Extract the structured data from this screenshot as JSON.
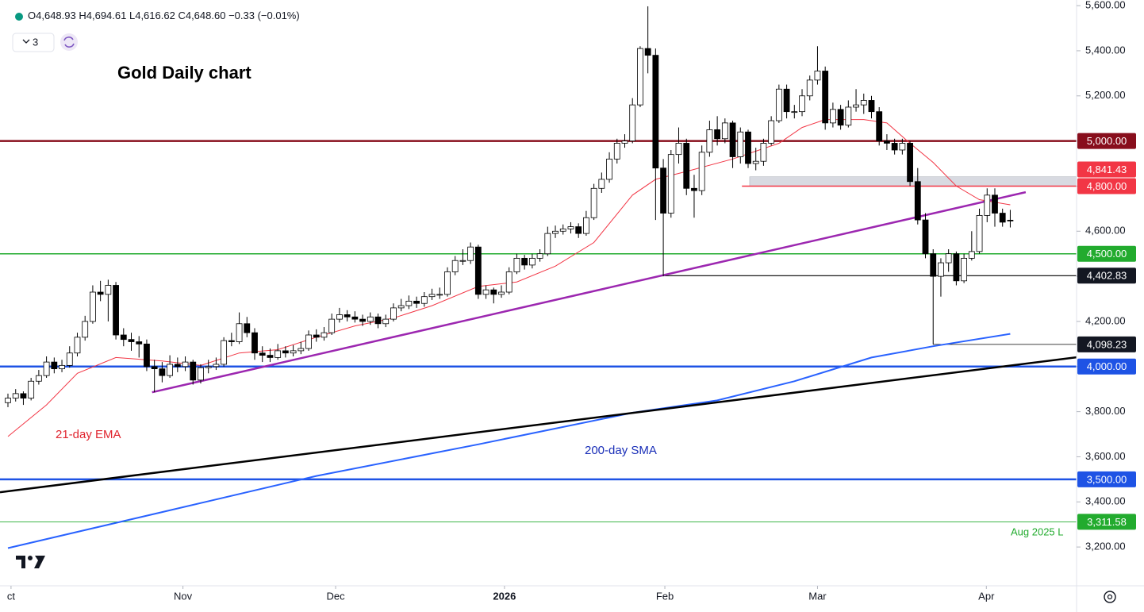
{
  "header": {
    "items": [
      {
        "key": "O",
        "value": "4,648.93"
      },
      {
        "key": "H",
        "value": "4,694.61"
      },
      {
        "key": "L",
        "value": "4,616.62"
      },
      {
        "key": "C",
        "value": "4,648.60"
      }
    ],
    "change": "−0.33 (−0.01%)",
    "interval": "3"
  },
  "chart_data": {
    "type": "candlestick",
    "title": "Gold Daily chart",
    "up_color": "#ffffff",
    "down_color": "#000000",
    "outline_color": "#000000",
    "xlim": [
      -1.03,
      138.6
    ],
    "ylim": [
      3028,
      5625
    ],
    "xticks": [
      {
        "value": 0.4,
        "label": "ct"
      },
      {
        "value": 22.7,
        "label": "Nov"
      },
      {
        "value": 42.5,
        "label": "Dec"
      },
      {
        "value": 64.4,
        "label": "2026"
      },
      {
        "value": 85.2,
        "label": "Feb"
      },
      {
        "value": 105,
        "label": "Mar"
      },
      {
        "value": 126.9,
        "label": "Apr"
      }
    ],
    "yticks": [
      {
        "value": 3200,
        "label": "3,200.00"
      },
      {
        "value": 3400,
        "label": "3,400.00"
      },
      {
        "value": 3600,
        "label": "3,600.00"
      },
      {
        "value": 3800,
        "label": "3,800.00"
      },
      {
        "value": 4000,
        "label": "4,000.00"
      },
      {
        "value": 4200,
        "label": "4,200.00"
      },
      {
        "value": 4400,
        "label": "4,400.00"
      },
      {
        "value": 4600,
        "label": "4,600.00"
      },
      {
        "value": 4800,
        "label": "4,800.00"
      },
      {
        "value": 5000,
        "label": "5,000.00"
      },
      {
        "value": 5200,
        "label": "5,200.00"
      },
      {
        "value": 5400,
        "label": "5,400.00"
      },
      {
        "value": 5600,
        "label": "5,600.00"
      }
    ],
    "grid": false,
    "ohlc": [
      [
        3840,
        3880,
        3820,
        3860
      ],
      [
        3860,
        3900,
        3845,
        3880
      ],
      [
        3880,
        3890,
        3830,
        3860
      ],
      [
        3860,
        3950,
        3850,
        3935
      ],
      [
        3935,
        3985,
        3920,
        3960
      ],
      [
        3960,
        4045,
        3950,
        4020
      ],
      [
        4020,
        4040,
        3970,
        3990
      ],
      [
        3990,
        4030,
        3975,
        4005
      ],
      [
        4005,
        4090,
        3995,
        4060
      ],
      [
        4060,
        4150,
        4045,
        4130
      ],
      [
        4130,
        4225,
        4115,
        4200
      ],
      [
        4200,
        4360,
        4190,
        4330
      ],
      [
        4330,
        4380,
        4290,
        4320
      ],
      [
        4320,
        4385,
        4200,
        4360
      ],
      [
        4360,
        4375,
        4120,
        4140
      ],
      [
        4140,
        4170,
        4090,
        4120
      ],
      [
        4120,
        4150,
        4070,
        4110
      ],
      [
        4110,
        4135,
        4040,
        4100
      ],
      [
        4100,
        4120,
        3980,
        4000
      ],
      [
        4000,
        4030,
        3886,
        3990
      ],
      [
        3990,
        4020,
        3930,
        3960
      ],
      [
        3960,
        4050,
        3950,
        4010
      ],
      [
        4010,
        4040,
        3975,
        4000
      ],
      [
        4000,
        4045,
        3980,
        4020
      ],
      [
        4020,
        4030,
        3920,
        3940
      ],
      [
        3940,
        4010,
        3925,
        3995
      ],
      [
        3995,
        4030,
        3970,
        4000
      ],
      [
        4000,
        4040,
        3985,
        4010
      ],
      [
        4010,
        4130,
        4000,
        4115
      ],
      [
        4115,
        4150,
        4090,
        4110
      ],
      [
        4110,
        4240,
        4100,
        4190
      ],
      [
        4190,
        4220,
        4130,
        4150
      ],
      [
        4150,
        4170,
        4030,
        4060
      ],
      [
        4060,
        4090,
        4020,
        4050
      ],
      [
        4050,
        4080,
        4020,
        4040
      ],
      [
        4040,
        4100,
        4030,
        4070
      ],
      [
        4070,
        4090,
        4040,
        4060
      ],
      [
        4060,
        4095,
        4045,
        4070
      ],
      [
        4070,
        4110,
        4055,
        4080
      ],
      [
        4080,
        4160,
        4070,
        4140
      ],
      [
        4140,
        4165,
        4110,
        4130
      ],
      [
        4130,
        4175,
        4115,
        4150
      ],
      [
        4150,
        4235,
        4140,
        4210
      ],
      [
        4210,
        4260,
        4195,
        4230
      ],
      [
        4230,
        4250,
        4200,
        4220
      ],
      [
        4220,
        4245,
        4195,
        4210
      ],
      [
        4210,
        4230,
        4180,
        4200
      ],
      [
        4200,
        4240,
        4185,
        4220
      ],
      [
        4220,
        4235,
        4170,
        4190
      ],
      [
        4190,
        4230,
        4175,
        4210
      ],
      [
        4210,
        4280,
        4200,
        4260
      ],
      [
        4260,
        4300,
        4245,
        4270
      ],
      [
        4270,
        4315,
        4255,
        4290
      ],
      [
        4290,
        4310,
        4260,
        4280
      ],
      [
        4280,
        4330,
        4265,
        4310
      ],
      [
        4310,
        4345,
        4295,
        4320
      ],
      [
        4320,
        4350,
        4300,
        4320
      ],
      [
        4320,
        4440,
        4310,
        4420
      ],
      [
        4420,
        4490,
        4405,
        4470
      ],
      [
        4470,
        4520,
        4450,
        4470
      ],
      [
        4470,
        4550,
        4455,
        4530
      ],
      [
        4530,
        4540,
        4300,
        4320
      ],
      [
        4320,
        4360,
        4300,
        4340
      ],
      [
        4340,
        4350,
        4280,
        4320
      ],
      [
        4320,
        4360,
        4305,
        4330
      ],
      [
        4330,
        4440,
        4320,
        4420
      ],
      [
        4420,
        4500,
        4410,
        4480
      ],
      [
        4480,
        4495,
        4430,
        4450
      ],
      [
        4450,
        4500,
        4435,
        4480
      ],
      [
        4480,
        4520,
        4465,
        4500
      ],
      [
        4500,
        4620,
        4490,
        4590
      ],
      [
        4590,
        4625,
        4570,
        4600
      ],
      [
        4600,
        4630,
        4585,
        4610
      ],
      [
        4610,
        4640,
        4590,
        4620
      ],
      [
        4620,
        4635,
        4570,
        4590
      ],
      [
        4590,
        4690,
        4580,
        4660
      ],
      [
        4660,
        4810,
        4650,
        4790
      ],
      [
        4790,
        4860,
        4770,
        4830
      ],
      [
        4830,
        4950,
        4815,
        4920
      ],
      [
        4920,
        5010,
        4900,
        4990
      ],
      [
        4990,
        5030,
        4970,
        5000
      ],
      [
        5000,
        5190,
        4990,
        5160
      ],
      [
        5160,
        5420,
        5150,
        5410
      ],
      [
        5410,
        5597,
        5300,
        5380
      ],
      [
        5380,
        5410,
        4650,
        4880
      ],
      [
        4880,
        4920,
        4400,
        4680
      ],
      [
        4680,
        4960,
        4660,
        4940
      ],
      [
        4940,
        5060,
        4900,
        4990
      ],
      [
        4990,
        5010,
        4760,
        4790
      ],
      [
        4790,
        4850,
        4660,
        4780
      ],
      [
        4780,
        4980,
        4760,
        4950
      ],
      [
        4950,
        5090,
        4930,
        5050
      ],
      [
        5050,
        5110,
        4980,
        5010
      ],
      [
        5010,
        5100,
        4990,
        5080
      ],
      [
        5080,
        5090,
        4880,
        4930
      ],
      [
        4930,
        5060,
        4900,
        5040
      ],
      [
        5040,
        5050,
        4880,
        4900
      ],
      [
        4900,
        4970,
        4870,
        4910
      ],
      [
        4910,
        5010,
        4890,
        4990
      ],
      [
        4990,
        5110,
        4980,
        5090
      ],
      [
        5090,
        5250,
        5080,
        5230
      ],
      [
        5230,
        5250,
        5100,
        5130
      ],
      [
        5130,
        5160,
        5100,
        5130
      ],
      [
        5130,
        5230,
        5110,
        5200
      ],
      [
        5200,
        5290,
        5180,
        5270
      ],
      [
        5270,
        5420,
        5250,
        5310
      ],
      [
        5310,
        5330,
        5050,
        5080
      ],
      [
        5080,
        5170,
        5060,
        5140
      ],
      [
        5140,
        5160,
        5050,
        5070
      ],
      [
        5070,
        5180,
        5060,
        5150
      ],
      [
        5150,
        5230,
        5130,
        5160
      ],
      [
        5160,
        5210,
        5120,
        5180
      ],
      [
        5180,
        5200,
        5100,
        5130
      ],
      [
        5130,
        5150,
        4980,
        5000
      ],
      [
        5000,
        5030,
        4960,
        4990
      ],
      [
        4990,
        5010,
        4940,
        4960
      ],
      [
        4960,
        5010,
        4940,
        4990
      ],
      [
        4990,
        5000,
        4800,
        4820
      ],
      [
        4820,
        4880,
        4630,
        4650
      ],
      [
        4650,
        4680,
        4480,
        4500
      ],
      [
        4500,
        4520,
        4098.23,
        4400
      ],
      [
        4400,
        4480,
        4310,
        4460
      ],
      [
        4460,
        4520,
        4420,
        4500
      ],
      [
        4500,
        4510,
        4360,
        4380
      ],
      [
        4380,
        4500,
        4370,
        4480
      ],
      [
        4480,
        4600,
        4470,
        4510
      ],
      [
        4510,
        4700,
        4500,
        4670
      ],
      [
        4670,
        4790,
        4640,
        4760
      ],
      [
        4760,
        4790,
        4620,
        4680
      ],
      [
        4680,
        4700,
        4620,
        4640
      ],
      [
        4648.93,
        4694.61,
        4616.62,
        4648.6
      ]
    ],
    "lines": [
      {
        "name": "21-day EMA",
        "color": "#f23645",
        "width": 1,
        "x": [
          0,
          5,
          9,
          14,
          20,
          25,
          30,
          35,
          40,
          45,
          50,
          55,
          61,
          66,
          71,
          76,
          81,
          84,
          88,
          94,
          100,
          103,
          106,
          111,
          114,
          117,
          120,
          123,
          126,
          130
        ],
        "values": [
          3690,
          3830,
          3970,
          4040,
          4025,
          4005,
          4060,
          4075,
          4130,
          4180,
          4215,
          4270,
          4355,
          4375,
          4445,
          4550,
          4760,
          4830,
          4865,
          4920,
          4990,
          5060,
          5095,
          5095,
          5080,
          4990,
          4905,
          4800,
          4740,
          4717
        ]
      },
      {
        "name": "200-day SMA",
        "color": "#2962ff",
        "width": 2,
        "x": [
          0,
          20,
          40,
          61,
          81,
          92,
          102,
          112,
          120,
          130
        ],
        "values": [
          3195,
          3355,
          3515,
          3655,
          3795,
          3850,
          3935,
          4040,
          4090,
          4145
        ]
      }
    ],
    "trendlines": [
      {
        "color": "#9c27b0",
        "width": 2.5,
        "x": [
          18.7,
          132
        ],
        "values": [
          3886,
          4773
        ]
      },
      {
        "color": "#000000",
        "width": 2.5,
        "x": [
          -1.03,
          138.6
        ],
        "values": [
          3443,
          4041
        ]
      }
    ],
    "levels": [
      {
        "value": 5000,
        "label": "5,000.00",
        "color": "#880e1c",
        "width": 2.5
      },
      {
        "value": 4841.43,
        "label": "4,841.43",
        "color": "#f23645",
        "width": 0,
        "zone": true,
        "x_start": 96.2
      },
      {
        "value": 4800,
        "label": "4,800.00",
        "color": "#f23645",
        "width": 1.5,
        "x_start": 95.2
      },
      {
        "value": 4500,
        "label": "4,500.00",
        "color": "#22ab2e",
        "width": 1.5
      },
      {
        "value": 4402.83,
        "label": "4,402.83",
        "color": "#000000",
        "width": 1.2,
        "x_start": 85
      },
      {
        "value": 4098.23,
        "label": "4,098.23",
        "color": "#000000",
        "width": 0.8,
        "x_start": 120
      },
      {
        "value": 4000,
        "label": "4,000.00",
        "color": "#1e53e5",
        "width": 2.5
      },
      {
        "value": 3500,
        "label": "3,500.00",
        "color": "#1e53e5",
        "width": 2.5
      },
      {
        "value": 3311.58,
        "label": "3,311.58",
        "color": "#22ab2e",
        "width": 0.8
      }
    ],
    "annotations": [
      "21-day EMA",
      "200-day SMA",
      "Aug 2025 L"
    ]
  }
}
